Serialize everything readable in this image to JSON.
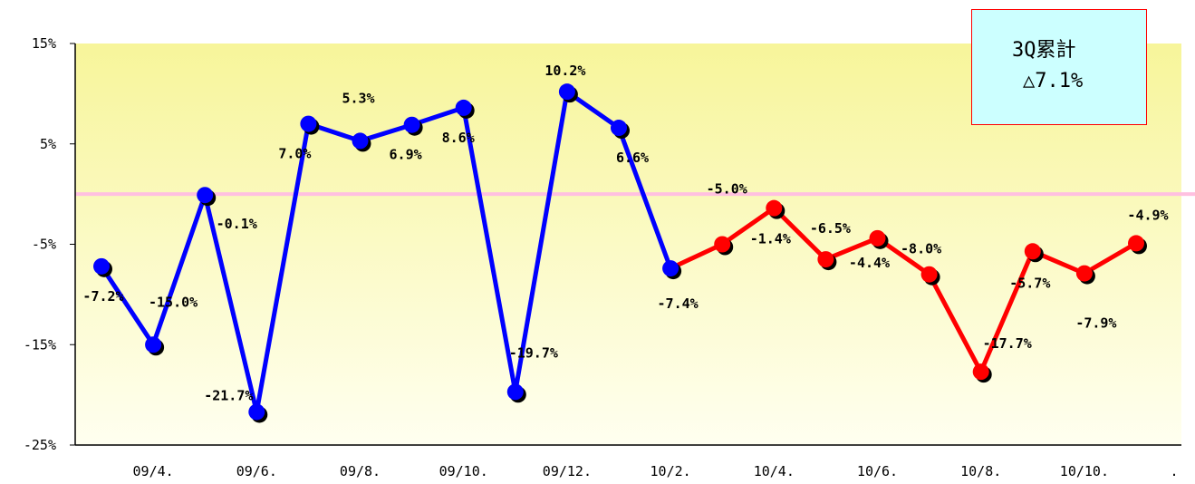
{
  "chart_data": {
    "type": "line",
    "title": "",
    "xlabel": "",
    "ylabel": "",
    "ylim": [
      -25,
      15
    ],
    "yticks": [
      "15%",
      "5%",
      "-5%",
      "-15%",
      "-25%"
    ],
    "x_ticklabels": [
      "09/4.",
      "09/6.",
      "09/8.",
      "09/10.",
      "09/12.",
      "10/2.",
      "10/4.",
      "10/6.",
      "10/8.",
      "10/10.",
      "."
    ],
    "series": [
      {
        "color": "#0000ff",
        "values": [
          -7.2,
          -15.0,
          -0.1,
          -21.7,
          7.0,
          5.3,
          6.9,
          8.6,
          -19.7,
          10.2,
          6.6,
          -7.4
        ],
        "labels": [
          "-7.2%",
          "-15.0%",
          "-0.1%",
          "-21.7%",
          "7.0%",
          "5.3%",
          "6.9%",
          "8.6%",
          "-19.7%",
          "10.2%",
          "6.6%",
          "-7.4%"
        ]
      },
      {
        "color": "#ff0000",
        "values": [
          -7.4,
          -5.0,
          -1.4,
          -6.5,
          -4.4,
          -8.0,
          -17.7,
          -5.7,
          -7.9,
          -4.9
        ],
        "labels": [
          "",
          "-5.0%",
          "-1.4%",
          "-6.5%",
          "-4.4%",
          "-8.0%",
          "-17.7%",
          "-5.7%",
          "-7.9%",
          "-4.9%"
        ]
      }
    ],
    "reference_line": 0,
    "grid": false,
    "colors": {
      "background_top": "#f7f59a",
      "background_bottom": "#fffff0",
      "zero_line": "#ffc0e0"
    }
  },
  "callout": {
    "line1": "3Q累計",
    "line2": "△7.1%"
  }
}
